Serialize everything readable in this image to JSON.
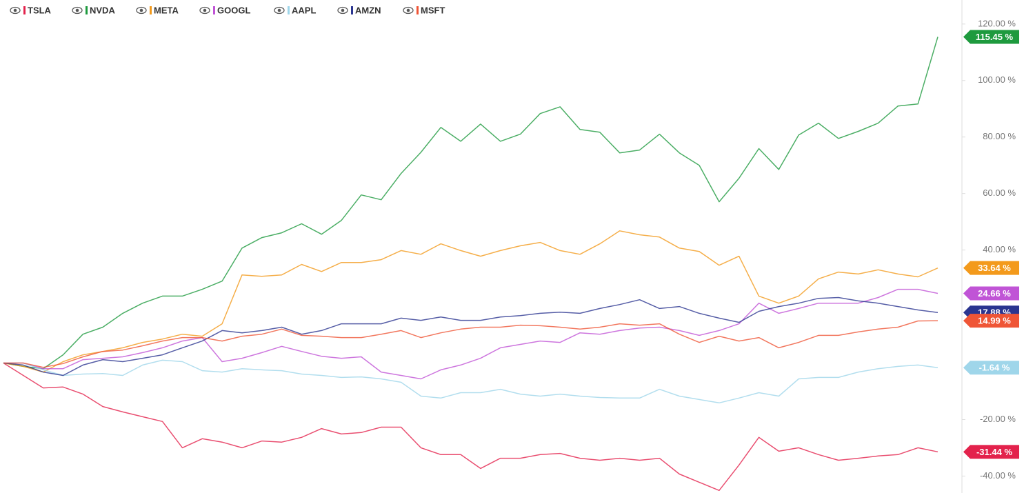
{
  "chart_data": {
    "type": "line",
    "ylim": [
      -46,
      128.5
    ],
    "yticks": [
      {
        "value": 120,
        "label": "120.00 %"
      },
      {
        "value": 100,
        "label": "100.00 %"
      },
      {
        "value": 80,
        "label": "80.00 %"
      },
      {
        "value": 60,
        "label": "60.00 %"
      },
      {
        "value": 40,
        "label": "40.00 %"
      },
      {
        "value": -20,
        "label": "-20.00 %"
      },
      {
        "value": -40,
        "label": "-40.00 %"
      }
    ],
    "series": [
      {
        "name": "TSLA",
        "color": "#e3224c",
        "values": [
          0,
          -4.4,
          -8.8,
          -8.5,
          -11,
          -15.4,
          -17.3,
          -19,
          -20.7,
          -30,
          -26.8,
          -28,
          -30,
          -27.6,
          -28,
          -26.3,
          -23.2,
          -25.1,
          -24.6,
          -22.7,
          -22.7,
          -30,
          -32.4,
          -32.4,
          -37.3,
          -33.7,
          -33.7,
          -32.4,
          -32,
          -33.7,
          -34.4,
          -33.7,
          -34.4,
          -33.7,
          -39.3,
          -42.2,
          -45.1,
          -36.1,
          -26.3,
          -31.2,
          -30,
          -32.4,
          -34.4,
          -33.7,
          -32.9,
          -32.4,
          -30,
          -31.44
        ],
        "value_labels": [
          null,
          null,
          null,
          null,
          null,
          null,
          null,
          null,
          null,
          null,
          null,
          null,
          null,
          null,
          null,
          null,
          null,
          null,
          null,
          null,
          null,
          null,
          null,
          null,
          null,
          null,
          null,
          null,
          null,
          null,
          null,
          null,
          null,
          null,
          null,
          null,
          null,
          null,
          null,
          null,
          null,
          null,
          null,
          null,
          null,
          null,
          null,
          "-31.44 %"
        ]
      },
      {
        "name": "NVDA",
        "color": "#1e9a3e",
        "values": [
          0,
          -1.2,
          -2,
          2.9,
          10.2,
          12.7,
          17.6,
          21.2,
          23.7,
          23.7,
          26.1,
          29,
          40.7,
          44.4,
          46.1,
          49.3,
          45.6,
          50.5,
          59.5,
          57.8,
          67.1,
          74.6,
          83.4,
          78.5,
          84.6,
          78.5,
          81,
          88.3,
          90.7,
          82.7,
          81.7,
          74.4,
          75.4,
          81,
          74.4,
          70,
          57.1,
          65.4,
          75.9,
          68.5,
          80.7,
          84.9,
          79.5,
          82,
          84.9,
          91,
          91.7,
          115.45
        ],
        "value_labels": [
          null,
          null,
          null,
          null,
          null,
          null,
          null,
          null,
          null,
          null,
          null,
          null,
          null,
          null,
          null,
          null,
          null,
          null,
          null,
          null,
          null,
          null,
          null,
          null,
          null,
          null,
          null,
          null,
          null,
          null,
          null,
          null,
          null,
          null,
          null,
          null,
          null,
          null,
          null,
          null,
          null,
          null,
          null,
          null,
          null,
          null,
          null,
          "115.45 %"
        ]
      },
      {
        "name": "META",
        "color": "#f39a1c",
        "values": [
          0,
          -1.2,
          -3.2,
          0.5,
          2.9,
          4.1,
          5.4,
          7.3,
          8.5,
          10.2,
          9.5,
          13.9,
          31.2,
          30.7,
          31.2,
          34.9,
          32.4,
          35.6,
          35.6,
          36.6,
          39.8,
          38.5,
          42.2,
          39.8,
          37.8,
          39.8,
          41.5,
          42.7,
          39.8,
          38.5,
          42.2,
          46.8,
          45.4,
          44.6,
          40.7,
          39.5,
          34.6,
          37.8,
          23.7,
          21.2,
          23.7,
          29.8,
          32.2,
          31.5,
          33,
          31.5,
          30.5,
          33.64
        ],
        "value_labels": [
          null,
          null,
          null,
          null,
          null,
          null,
          null,
          null,
          null,
          null,
          null,
          null,
          null,
          null,
          null,
          null,
          null,
          null,
          null,
          null,
          null,
          null,
          null,
          null,
          null,
          null,
          null,
          null,
          null,
          null,
          null,
          null,
          null,
          null,
          null,
          null,
          null,
          null,
          null,
          null,
          null,
          null,
          null,
          null,
          null,
          null,
          null,
          "33.64 %"
        ]
      },
      {
        "name": "GOOGL",
        "color": "#c054d6",
        "values": [
          0,
          0,
          -2,
          -2,
          1.2,
          1.7,
          2.2,
          3.7,
          5.4,
          7.8,
          9,
          0.5,
          1.7,
          3.7,
          5.9,
          4.1,
          2.4,
          1.7,
          2.2,
          -3.2,
          -4.4,
          -5.6,
          -2.4,
          -0.7,
          1.7,
          5.4,
          6.6,
          7.8,
          7.3,
          10.7,
          10.2,
          11.5,
          12.4,
          12.7,
          11.5,
          9.8,
          11.5,
          13.9,
          21.2,
          17.6,
          19.3,
          21.2,
          21.2,
          21.2,
          23.2,
          26.1,
          26.1,
          24.66
        ],
        "value_labels": [
          null,
          null,
          null,
          null,
          null,
          null,
          null,
          null,
          null,
          null,
          null,
          null,
          null,
          null,
          null,
          null,
          null,
          null,
          null,
          null,
          null,
          null,
          null,
          null,
          null,
          null,
          null,
          null,
          null,
          null,
          null,
          null,
          null,
          null,
          null,
          null,
          null,
          null,
          null,
          null,
          null,
          null,
          null,
          null,
          null,
          null,
          null,
          "24.66 %"
        ]
      },
      {
        "name": "AAPL",
        "color": "#9fd6ea",
        "values": [
          0,
          0,
          -2.4,
          -4.4,
          -3.9,
          -3.7,
          -4.4,
          -0.7,
          1,
          0.5,
          -2.7,
          -3.2,
          -2,
          -2.4,
          -2.7,
          -3.9,
          -4.4,
          -5.1,
          -4.9,
          -5.6,
          -6.8,
          -11.7,
          -12.4,
          -10.5,
          -10.5,
          -9.3,
          -11,
          -11.7,
          -11,
          -11.7,
          -12.2,
          -12.4,
          -12.4,
          -9.3,
          -11.7,
          -12.9,
          -14.1,
          -12.4,
          -10.5,
          -11.7,
          -5.6,
          -5.1,
          -5.1,
          -3.2,
          -2,
          -1.2,
          -0.7,
          -1.64
        ],
        "value_labels": [
          null,
          null,
          null,
          null,
          null,
          null,
          null,
          null,
          null,
          null,
          null,
          null,
          null,
          null,
          null,
          null,
          null,
          null,
          null,
          null,
          null,
          null,
          null,
          null,
          null,
          null,
          null,
          null,
          null,
          null,
          null,
          null,
          null,
          null,
          null,
          null,
          null,
          null,
          null,
          null,
          null,
          null,
          null,
          null,
          null,
          null,
          null,
          "-1.64 %"
        ]
      },
      {
        "name": "AMZN",
        "color": "#2a3590",
        "values": [
          0,
          -0.7,
          -3.2,
          -4.4,
          -0.7,
          1.2,
          0.5,
          1.7,
          2.9,
          5.4,
          7.8,
          11.5,
          10.7,
          11.5,
          12.7,
          10.2,
          11.5,
          13.9,
          13.9,
          13.9,
          15.9,
          15.1,
          16.3,
          15.1,
          15.1,
          16.3,
          16.8,
          17.6,
          18,
          17.6,
          19.3,
          20.7,
          22.4,
          19.3,
          20,
          17.6,
          15.9,
          14.4,
          18.3,
          20,
          21.2,
          22.9,
          23.2,
          22,
          21.2,
          20,
          18.8,
          17.88
        ],
        "value_labels": [
          null,
          null,
          null,
          null,
          null,
          null,
          null,
          null,
          null,
          null,
          null,
          null,
          null,
          null,
          null,
          null,
          null,
          null,
          null,
          null,
          null,
          null,
          null,
          null,
          null,
          null,
          null,
          null,
          null,
          null,
          null,
          null,
          null,
          null,
          null,
          null,
          null,
          null,
          null,
          null,
          null,
          null,
          null,
          null,
          null,
          null,
          null,
          "17.88 %"
        ]
      },
      {
        "name": "MSFT",
        "color": "#ef5536",
        "values": [
          0,
          0,
          -1.5,
          -0.2,
          2.2,
          4.1,
          4.6,
          6.1,
          7.8,
          9,
          9,
          7.8,
          9.5,
          10.2,
          12,
          9.8,
          9.5,
          9,
          9,
          10.2,
          11.5,
          9,
          10.7,
          12,
          12.7,
          12.7,
          13.4,
          13.2,
          12.7,
          12,
          12.7,
          13.9,
          13.4,
          13.9,
          10.2,
          7.3,
          9.5,
          7.8,
          9,
          5.4,
          7.3,
          9.8,
          9.8,
          11,
          12,
          12.7,
          14.9,
          14.99
        ],
        "value_labels": [
          null,
          null,
          null,
          null,
          null,
          null,
          null,
          null,
          null,
          null,
          null,
          null,
          null,
          null,
          null,
          null,
          null,
          null,
          null,
          null,
          null,
          null,
          null,
          null,
          null,
          null,
          null,
          null,
          null,
          null,
          null,
          null,
          null,
          null,
          null,
          null,
          null,
          null,
          null,
          null,
          null,
          null,
          null,
          null,
          null,
          null,
          null,
          "14.99 %"
        ]
      }
    ]
  }
}
